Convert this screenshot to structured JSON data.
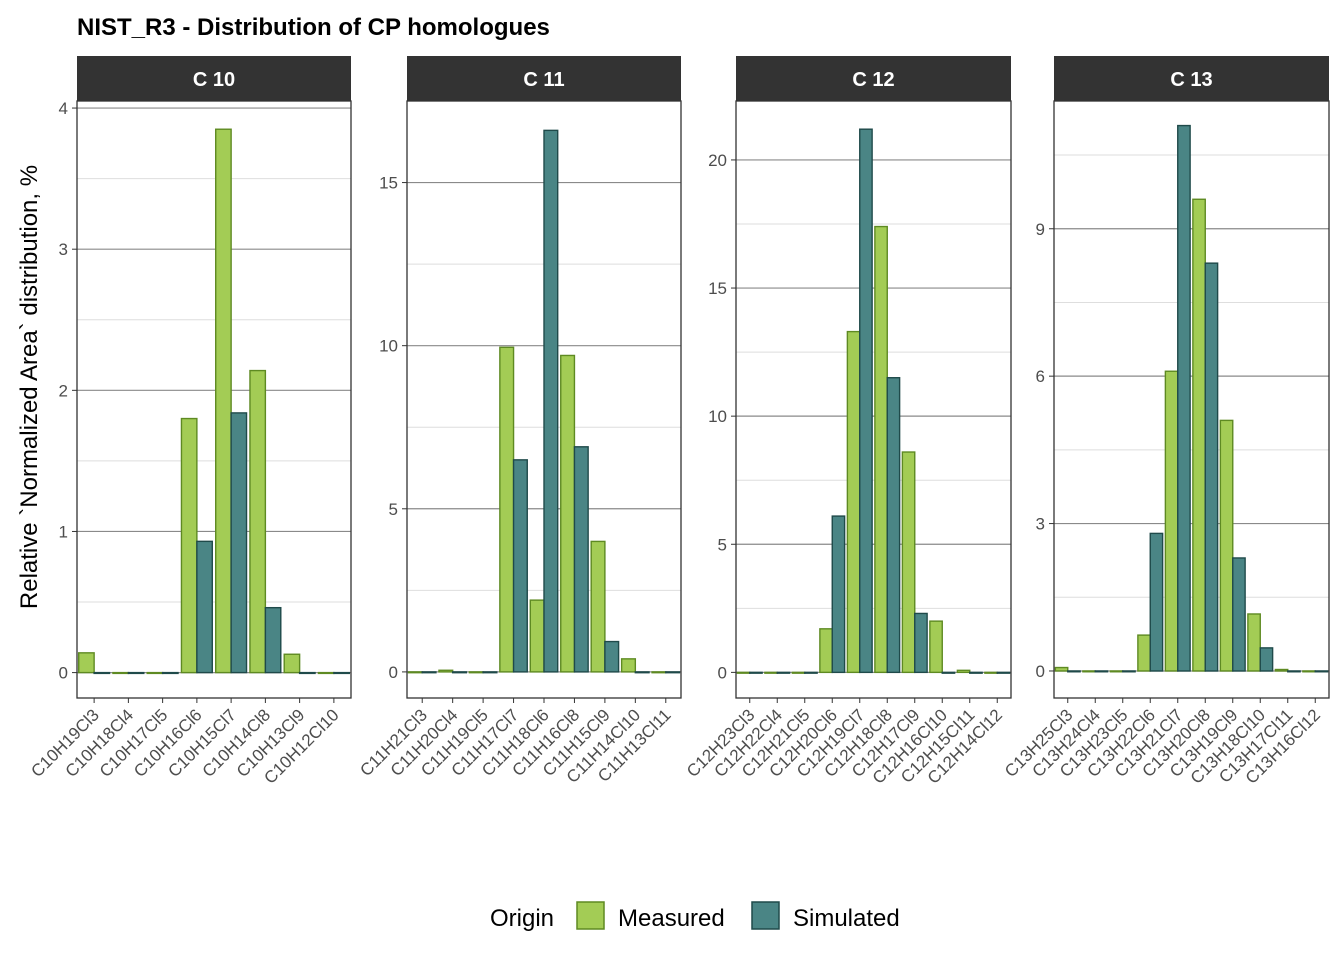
{
  "chart_data": {
    "type": "bar",
    "title": "NIST_R3  - Distribution of CP homologues",
    "ylabel": "Relative `Normalized Area` distribution, %",
    "grid": true,
    "legend": {
      "title": "Origin",
      "position": "bottom",
      "items": [
        {
          "name": "Measured",
          "color": "#a3cc55",
          "border": "#5e8a22"
        },
        {
          "name": "Simulated",
          "color": "#4a8585",
          "border": "#1f4a4a"
        }
      ]
    },
    "panels": [
      {
        "strip": "C 10",
        "ylim": [
          -0.18,
          4.05
        ],
        "yticks": [
          0,
          1,
          2,
          3,
          4
        ],
        "categories": [
          "C10H19Cl3",
          "C10H18Cl4",
          "C10H17Cl5",
          "C10H16Cl6",
          "C10H15Cl7",
          "C10H14Cl8",
          "C10H13Cl9",
          "C10H12Cl10"
        ],
        "series": [
          {
            "name": "Measured",
            "values": [
              0.14,
              0,
              0,
              1.8,
              3.85,
              2.14,
              0.13,
              0
            ]
          },
          {
            "name": "Simulated",
            "values": [
              0,
              0,
              0,
              0.93,
              1.84,
              0.46,
              0,
              0
            ]
          }
        ]
      },
      {
        "strip": "C 11",
        "ylim": [
          -0.8,
          17.5
        ],
        "yticks": [
          0,
          5,
          10,
          15
        ],
        "categories": [
          "C11H21Cl3",
          "C11H20Cl4",
          "C11H19Cl5",
          "C11H17Cl7",
          "C11H18Cl6",
          "C11H16Cl8",
          "C11H15Cl9",
          "C11H14Cl10",
          "C11H13Cl11"
        ],
        "series": [
          {
            "name": "Measured",
            "values": [
              0,
              0.05,
              0,
              9.95,
              2.2,
              9.7,
              4.0,
              0.4,
              0
            ]
          },
          {
            "name": "Simulated",
            "values": [
              0,
              0,
              0,
              6.5,
              16.6,
              6.9,
              0.93,
              0,
              0
            ]
          }
        ]
      },
      {
        "strip": "C 12",
        "ylim": [
          -1.0,
          22.3
        ],
        "yticks": [
          0,
          5,
          10,
          15,
          20
        ],
        "categories": [
          "C12H23Cl3",
          "C12H22Cl4",
          "C12H21Cl5",
          "C12H20Cl6",
          "C12H19Cl7",
          "C12H18Cl8",
          "C12H17Cl9",
          "C12H16Cl10",
          "C12H15Cl11",
          "C12H14Cl12"
        ],
        "series": [
          {
            "name": "Measured",
            "values": [
              0,
              0,
              0,
              1.7,
              13.3,
              17.4,
              8.6,
              2.0,
              0.08,
              0
            ]
          },
          {
            "name": "Simulated",
            "values": [
              0,
              0,
              0,
              6.1,
              21.2,
              11.5,
              2.3,
              0,
              0,
              0
            ]
          }
        ]
      },
      {
        "strip": "C 13",
        "ylim": [
          -0.55,
          11.6
        ],
        "yticks": [
          0,
          3,
          6,
          9
        ],
        "categories": [
          "C13H25Cl3",
          "C13H24Cl4",
          "C13H23Cl5",
          "C13H22Cl6",
          "C13H21Cl7",
          "C13H20Cl8",
          "C13H19Cl9",
          "C13H18Cl10",
          "C13H17Cl11",
          "C13H16Cl12"
        ],
        "series": [
          {
            "name": "Measured",
            "values": [
              0.07,
              0,
              0,
              0.73,
              6.1,
              9.6,
              5.1,
              1.16,
              0.03,
              0
            ]
          },
          {
            "name": "Simulated",
            "values": [
              0,
              0,
              0,
              2.8,
              11.1,
              8.3,
              2.3,
              0.47,
              0,
              0
            ]
          }
        ]
      }
    ]
  }
}
